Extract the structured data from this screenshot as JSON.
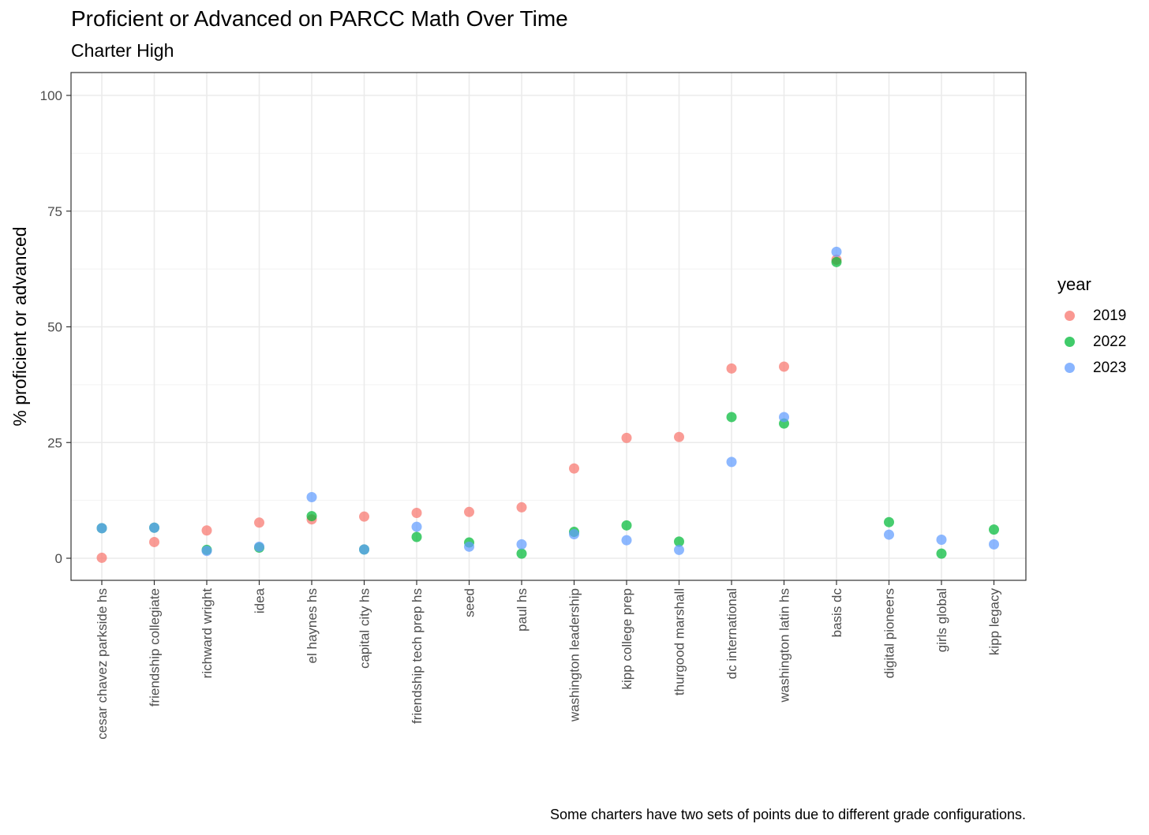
{
  "header": {
    "title": "Proficient or Advanced on PARCC Math Over Time",
    "subtitle": "Charter High"
  },
  "caption": "Some charters have two sets of points due to different grade configurations.",
  "legend": {
    "title": "year",
    "items": [
      {
        "label": "2019",
        "color": "#F8766D"
      },
      {
        "label": "2022",
        "color": "#00BA38"
      },
      {
        "label": "2023",
        "color": "#619CFF"
      }
    ]
  },
  "chart_data": {
    "type": "scatter",
    "title": "Proficient or Advanced on PARCC Math Over Time",
    "subtitle": "Charter High",
    "xlabel": "",
    "ylabel": "% proficient or advanced",
    "ylim": [
      -5,
      100
    ],
    "yticks": [
      0,
      25,
      50,
      75,
      100
    ],
    "grid": true,
    "legend_position": "right",
    "categories": [
      "cesar chavez parkside hs",
      "friendship collegiate",
      "richward wright",
      "idea",
      "el haynes hs",
      "capital city hs",
      "friendship tech prep hs",
      "seed",
      "paul hs",
      "washington leadership",
      "kipp college prep",
      "thurgood marshall",
      "dc international",
      "washington latin hs",
      "basis dc",
      "digital pioneers",
      "girls global",
      "kipp legacy"
    ],
    "series": [
      {
        "name": "2019",
        "color": "#F8766D",
        "points": [
          {
            "x": "cesar chavez parkside hs",
            "y": 0.1
          },
          {
            "x": "friendship collegiate",
            "y": 3.5
          },
          {
            "x": "richward wright",
            "y": 6.0
          },
          {
            "x": "idea",
            "y": 7.7
          },
          {
            "x": "el haynes hs",
            "y": 8.4
          },
          {
            "x": "capital city hs",
            "y": 9.0
          },
          {
            "x": "friendship tech prep hs",
            "y": 9.8
          },
          {
            "x": "seed",
            "y": 10.0
          },
          {
            "x": "paul hs",
            "y": 11.0
          },
          {
            "x": "washington leadership",
            "y": 19.4
          },
          {
            "x": "kipp college prep",
            "y": 26.0
          },
          {
            "x": "thurgood marshall",
            "y": 26.2
          },
          {
            "x": "dc international",
            "y": 41.0
          },
          {
            "x": "washington latin hs",
            "y": 41.4
          },
          {
            "x": "basis dc",
            "y": 64.5
          }
        ]
      },
      {
        "name": "2022",
        "color": "#00BA38",
        "points": [
          {
            "x": "cesar chavez parkside hs",
            "y": 6.5
          },
          {
            "x": "friendship collegiate",
            "y": 6.6
          },
          {
            "x": "richward wright",
            "y": 1.8
          },
          {
            "x": "idea",
            "y": 2.3
          },
          {
            "x": "el haynes hs",
            "y": 9.1
          },
          {
            "x": "capital city hs",
            "y": 1.9
          },
          {
            "x": "friendship tech prep hs",
            "y": 4.6
          },
          {
            "x": "seed",
            "y": 3.4
          },
          {
            "x": "paul hs",
            "y": 1.0
          },
          {
            "x": "washington leadership",
            "y": 5.7
          },
          {
            "x": "kipp college prep",
            "y": 7.1
          },
          {
            "x": "thurgood marshall",
            "y": 3.6
          },
          {
            "x": "dc international",
            "y": 30.5
          },
          {
            "x": "washington latin hs",
            "y": 29.1
          },
          {
            "x": "basis dc",
            "y": 64.0
          },
          {
            "x": "digital pioneers",
            "y": 7.8
          },
          {
            "x": "girls global",
            "y": 1.0
          },
          {
            "x": "kipp legacy",
            "y": 6.2
          }
        ]
      },
      {
        "name": "2023",
        "color": "#619CFF",
        "points": [
          {
            "x": "cesar chavez parkside hs",
            "y": 6.5
          },
          {
            "x": "friendship collegiate",
            "y": 6.6
          },
          {
            "x": "richward wright",
            "y": 1.6
          },
          {
            "x": "idea",
            "y": 2.5
          },
          {
            "x": "el haynes hs",
            "y": 13.2
          },
          {
            "x": "capital city hs",
            "y": 1.9
          },
          {
            "x": "friendship tech prep hs",
            "y": 6.8
          },
          {
            "x": "seed",
            "y": 2.5
          },
          {
            "x": "paul hs",
            "y": 3.0
          },
          {
            "x": "washington leadership",
            "y": 5.2
          },
          {
            "x": "kipp college prep",
            "y": 3.9
          },
          {
            "x": "thurgood marshall",
            "y": 1.8
          },
          {
            "x": "dc international",
            "y": 20.8
          },
          {
            "x": "washington latin hs",
            "y": 30.5
          },
          {
            "x": "basis dc",
            "y": 66.2
          },
          {
            "x": "digital pioneers",
            "y": 5.1
          },
          {
            "x": "girls global",
            "y": 4.0
          },
          {
            "x": "kipp legacy",
            "y": 3.0
          }
        ]
      }
    ]
  }
}
